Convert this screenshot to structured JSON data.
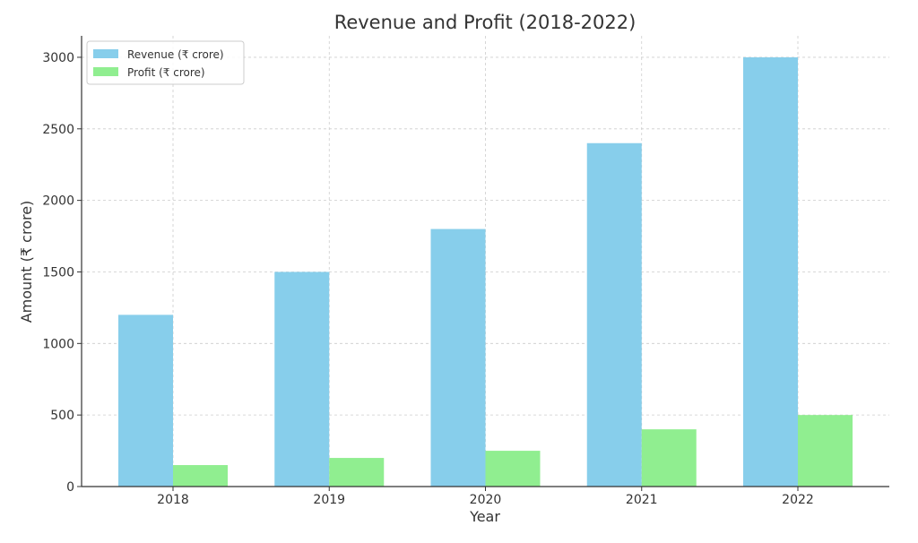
{
  "chart_data": {
    "type": "bar",
    "title": "Revenue and Profit (2018-2022)",
    "xlabel": "Year",
    "ylabel": "Amount (₹ crore)",
    "categories": [
      "2018",
      "2019",
      "2020",
      "2021",
      "2022"
    ],
    "series": [
      {
        "name": "Revenue (₹ crore)",
        "values": [
          1200,
          1500,
          1800,
          2400,
          3000
        ],
        "color": "#87CEEB"
      },
      {
        "name": "Profit (₹ crore)",
        "values": [
          150,
          200,
          250,
          400,
          500
        ],
        "color": "#90EE90"
      }
    ],
    "ylim": [
      0,
      3150
    ],
    "yticks": [
      0,
      500,
      1000,
      1500,
      2000,
      2500,
      3000
    ],
    "grid": true,
    "legend_position": "top-left"
  }
}
